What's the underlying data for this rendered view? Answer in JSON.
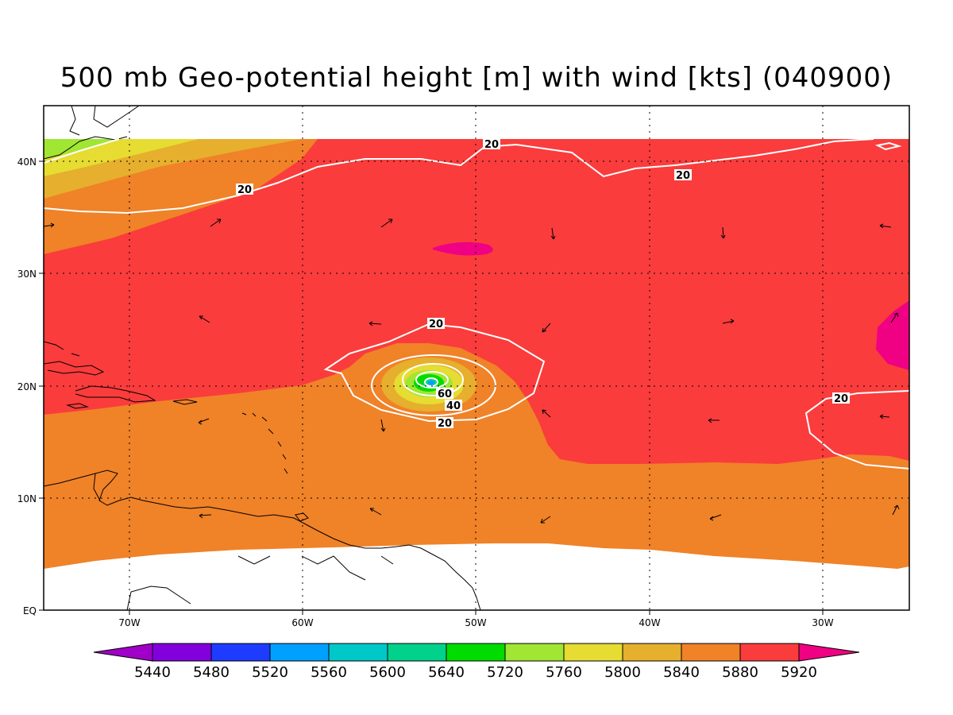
{
  "title": "500 mb Geo-potential height [m] with wind [kts] (040900)",
  "axes": {
    "lat_ticks": [
      "40N",
      "30N",
      "20N",
      "10N",
      "EQ"
    ],
    "lon_ticks": [
      "70W",
      "60W",
      "50W",
      "40W",
      "30W"
    ]
  },
  "isotach_labels": [
    "20",
    "20",
    "20",
    "20",
    "20",
    "20",
    "60",
    "40"
  ],
  "colorbar": {
    "labels": [
      "5440",
      "5480",
      "5520",
      "5560",
      "5600",
      "5640",
      "5720",
      "5760",
      "5800",
      "5840",
      "5880",
      "5920"
    ],
    "colors": [
      "#a000c8",
      "#8200dc",
      "#1e3cff",
      "#00a0ff",
      "#00c8c8",
      "#00d28c",
      "#00dc00",
      "#a0e632",
      "#e6dc32",
      "#e6af2d",
      "#f08228",
      "#fa3c3c",
      "#f00082"
    ]
  },
  "field_colors": {
    "c5720": "#00dc00",
    "c5760": "#a0e632",
    "c5800": "#e6dc32",
    "c5840": "#e6af2d",
    "c5880": "#f08228",
    "c5920": "#fa3c3c",
    "c5960": "#f00082",
    "isotach": "#ffffff",
    "coast": "#000000"
  }
}
